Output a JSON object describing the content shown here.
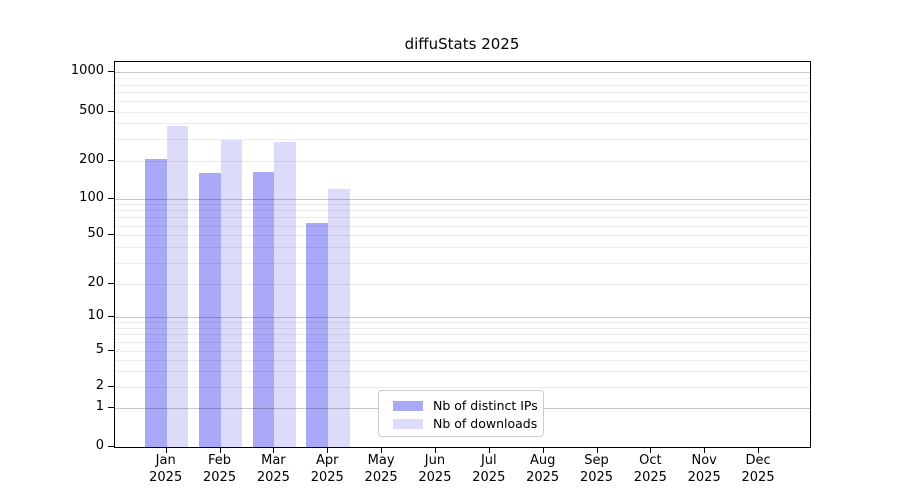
{
  "title": "diffuStats 2025",
  "chart_data": {
    "type": "bar",
    "title": "diffuStats 2025",
    "categories": [
      "Jan 2025",
      "Feb 2025",
      "Mar 2025",
      "Apr 2025",
      "May 2025",
      "Jun 2025",
      "Jul 2025",
      "Aug 2025",
      "Sep 2025",
      "Oct 2025",
      "Nov 2025",
      "Dec 2025"
    ],
    "series": [
      {
        "name": "Nb of distinct IPs",
        "color": "#a9a9f7",
        "values": [
          205,
          159,
          163,
          63,
          null,
          null,
          null,
          null,
          null,
          null,
          null,
          null
        ]
      },
      {
        "name": "Nb of downloads",
        "color": "#dcdcfa",
        "values": [
          380,
          295,
          281,
          119,
          null,
          null,
          null,
          null,
          null,
          null,
          null,
          null
        ]
      }
    ],
    "xlabel": "",
    "ylabel": "",
    "yscale": "symlog",
    "ylim": [
      0,
      1200
    ],
    "yticks": [
      0,
      1,
      2,
      5,
      10,
      20,
      50,
      100,
      200,
      500,
      1000
    ],
    "ytick_labels": [
      "0",
      "1",
      "2",
      "5",
      "10",
      "20",
      "50",
      "100",
      "200",
      "500",
      "1000"
    ],
    "grid": true,
    "grid_minor": true,
    "legend_position": "lower center",
    "background_color": "#ffffff",
    "major_grid_color": "#c8c8c8",
    "minor_grid_color": "#ececec"
  }
}
